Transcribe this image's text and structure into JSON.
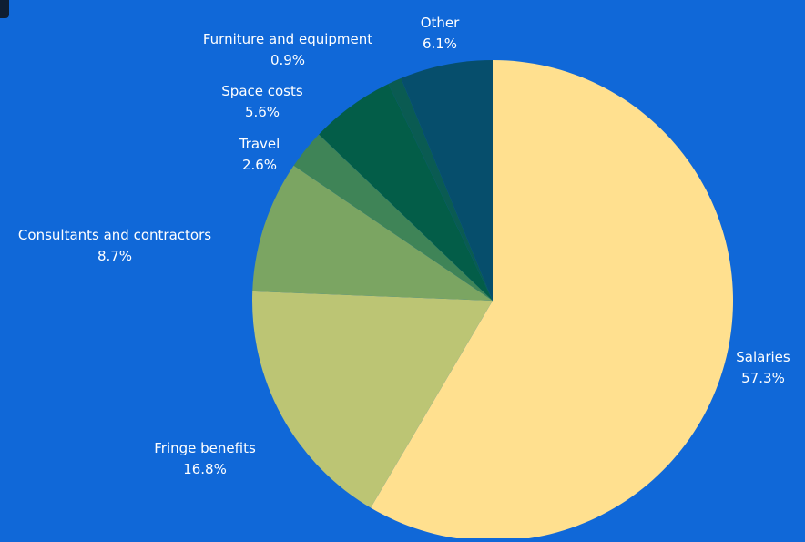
{
  "chart_data": {
    "type": "pie",
    "title": "",
    "start_angle_deg": 0,
    "direction": "clockwise",
    "slices": [
      {
        "label": "Salaries",
        "value_text": "57.3%",
        "value": 57.3,
        "color": "#ffe08f"
      },
      {
        "label": "Fringe benefits",
        "value_text": "16.8%",
        "value": 16.8,
        "color": "#bcc574"
      },
      {
        "label": "Consultants and contractors",
        "value_text": "8.7%",
        "value": 8.7,
        "color": "#7ba562"
      },
      {
        "label": "Travel",
        "value_text": "2.6%",
        "value": 2.6,
        "color": "#3f8457"
      },
      {
        "label": "Space costs",
        "value_text": "5.6%",
        "value": 5.6,
        "color": "#035d48"
      },
      {
        "label": "Furniture and equipment",
        "value_text": "0.9%",
        "value": 0.9,
        "color": "#0a5b52"
      },
      {
        "label": "Other",
        "value_text": "6.1%",
        "value": 6.1,
        "color": "#064e6c"
      }
    ]
  },
  "colors": {
    "background": "#1068d8",
    "label_text": "#ffffff"
  }
}
